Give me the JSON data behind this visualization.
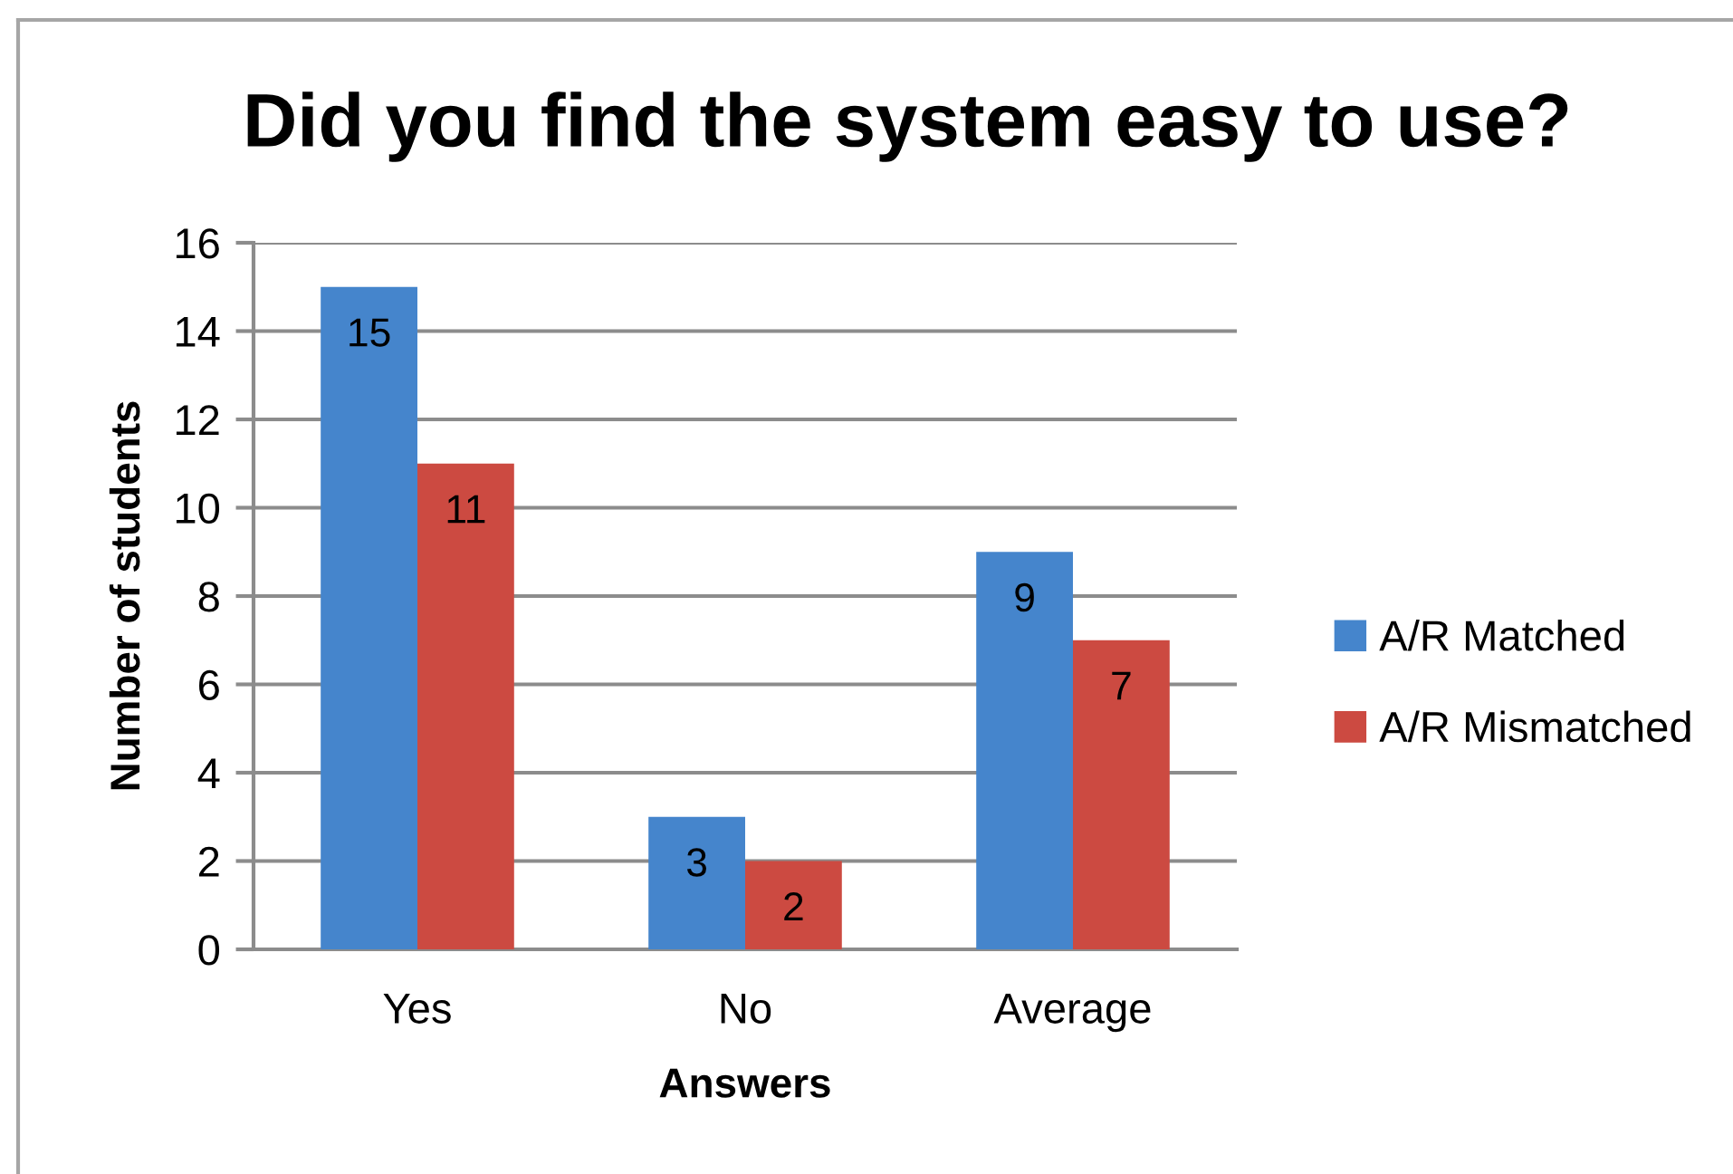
{
  "chart_data": {
    "type": "bar",
    "title": "Did you find the system easy to use?",
    "xlabel": "Answers",
    "ylabel": "Number of students",
    "categories": [
      "Yes",
      "No",
      "Average"
    ],
    "series": [
      {
        "name": "A/R Matched",
        "color": "#4585cc",
        "values": [
          15,
          3,
          9
        ]
      },
      {
        "name": "A/R Mismatched",
        "color": "#cc4a41",
        "values": [
          11,
          2,
          7
        ]
      }
    ],
    "ylim": [
      0,
      16
    ],
    "yticks": [
      0,
      2,
      4,
      6,
      8,
      10,
      12,
      14,
      16
    ],
    "grid": "y",
    "legend": "right",
    "data_labels": true
  }
}
